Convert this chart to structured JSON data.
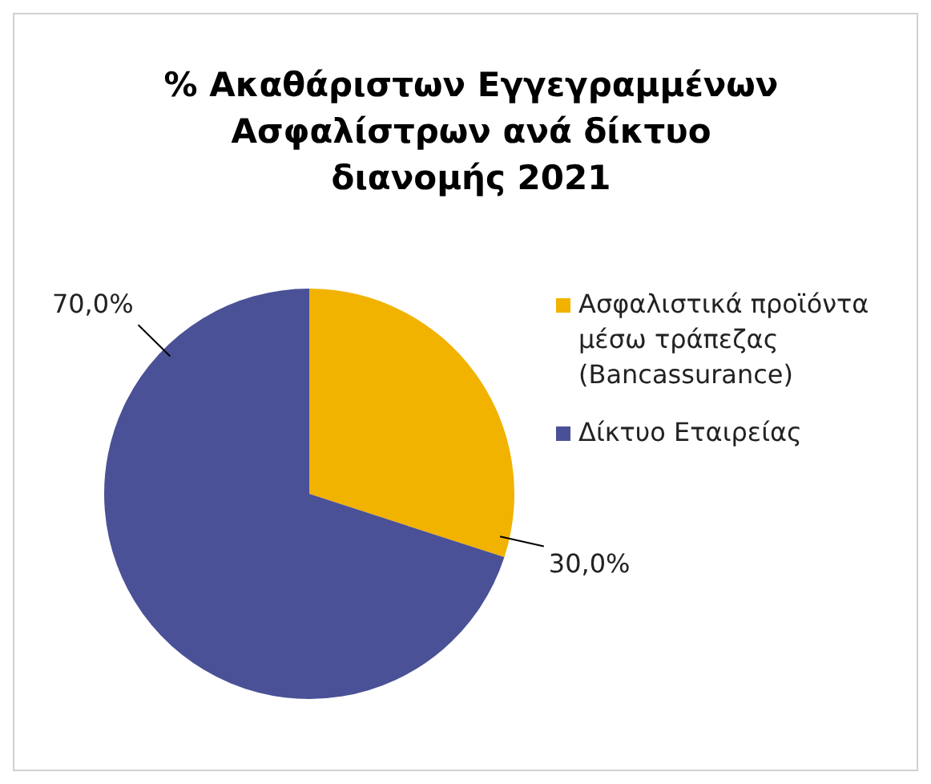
{
  "chart_data": {
    "type": "pie",
    "title": "% Ακαθάριστων Εγγεγραμμένων Ασφαλίστρων ανά δίκτυο διανομής 2021",
    "categories": [
      "Ασφαλιστικά προϊόντα μέσω τράπεζας (Bancassurance)",
      "Δίκτυο Εταιρείας"
    ],
    "values": [
      30,
      70
    ],
    "colors": [
      "#f2b200",
      "#4a5196"
    ],
    "value_labels": [
      "30,0%",
      "70,0%"
    ],
    "legend": "right"
  }
}
